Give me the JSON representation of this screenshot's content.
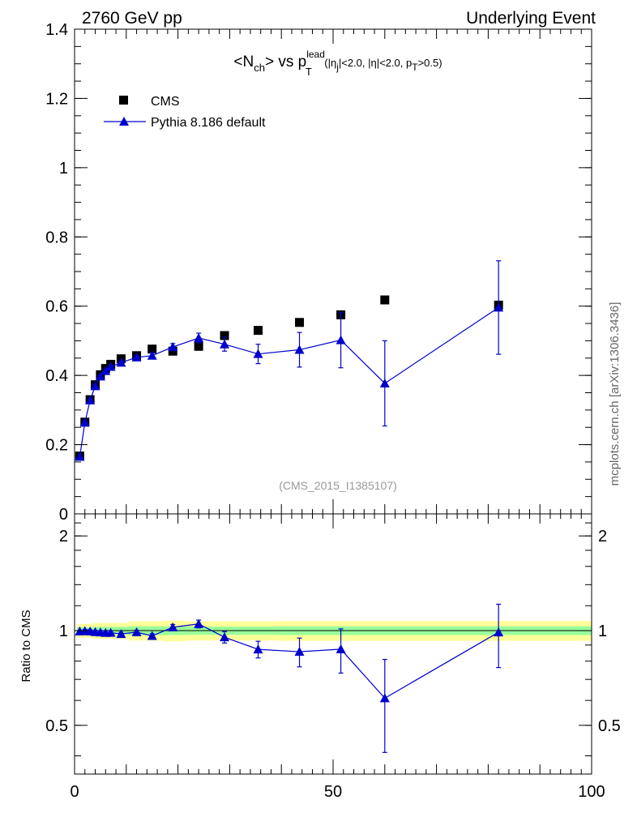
{
  "header": {
    "left": "2760 GeV pp",
    "right": "Underlying Event"
  },
  "side_label": "mcplots.cern.ch [arXiv:1306.3436]",
  "chart_data": {
    "type": "scatter",
    "title": {
      "n_open": "<N",
      "n_sub": "ch",
      "n_close": "> vs p",
      "p_sup": "lead",
      "p_sub": "T",
      "cut_open": " (|η",
      "cut_eta_sub": "j",
      "cut_mid": "|<2.0, |η|<2.0, p",
      "cut_pt_sub": "T",
      "cut_close": ">0.5)"
    },
    "watermark": "(CMS_2015_I1385107)",
    "xlim": [
      0,
      100
    ],
    "main": {
      "ylim": [
        0,
        1.4
      ],
      "yticks": [
        {
          "value": 0,
          "label": "0"
        },
        {
          "value": 0.2,
          "label": "0.2"
        },
        {
          "value": 0.4,
          "label": "0.4"
        },
        {
          "value": 0.6,
          "label": "0.6"
        },
        {
          "value": 0.8,
          "label": "0.8"
        },
        {
          "value": 1.0,
          "label": "1"
        },
        {
          "value": 1.2,
          "label": "1.2"
        },
        {
          "value": 1.4,
          "label": "1.4"
        }
      ]
    },
    "ratio": {
      "ylabel": "Ratio to CMS",
      "ylim": [
        0.35,
        2.35
      ],
      "log": true,
      "yticks": [
        {
          "value": 0.5,
          "label": "0.5"
        },
        {
          "value": 1,
          "label": "1"
        },
        {
          "value": 2,
          "label": "2"
        }
      ]
    },
    "xticks": [
      {
        "value": 0,
        "label": "0"
      },
      {
        "value": 50,
        "label": "50"
      },
      {
        "value": 100,
        "label": "100"
      }
    ],
    "legend": {
      "placement": "top-left",
      "entries": [
        "CMS",
        "Pythia 8.186 default"
      ]
    },
    "colors": {
      "data": "#000000",
      "mc": "#0000cc",
      "band_inner": "#99ff99",
      "band_outer": "#ffff99"
    },
    "series": [
      {
        "name": "CMS",
        "marker": "square",
        "points": [
          {
            "x": 1.0,
            "y": 0.167,
            "xlo": 0.5,
            "xhi": 1.5
          },
          {
            "x": 2.0,
            "y": 0.265,
            "xlo": 1.5,
            "xhi": 2.5
          },
          {
            "x": 3.0,
            "y": 0.33,
            "xlo": 2.5,
            "xhi": 3.5
          },
          {
            "x": 4.0,
            "y": 0.373,
            "xlo": 3.5,
            "xhi": 4.5
          },
          {
            "x": 5.0,
            "y": 0.402,
            "xlo": 4.5,
            "xhi": 5.5
          },
          {
            "x": 6.0,
            "y": 0.42,
            "xlo": 5.5,
            "xhi": 6.5
          },
          {
            "x": 7.0,
            "y": 0.432,
            "xlo": 6.5,
            "xhi": 8.0
          },
          {
            "x": 9.0,
            "y": 0.448,
            "xlo": 8.0,
            "xhi": 10.5
          },
          {
            "x": 12.0,
            "y": 0.457,
            "xlo": 10.5,
            "xhi": 13.5
          },
          {
            "x": 15.0,
            "y": 0.476,
            "xlo": 13.5,
            "xhi": 17.0
          },
          {
            "x": 19.0,
            "y": 0.47,
            "xlo": 17.0,
            "xhi": 21.5
          },
          {
            "x": 24.0,
            "y": 0.484,
            "xlo": 21.5,
            "xhi": 26.5
          },
          {
            "x": 29.0,
            "y": 0.515,
            "xlo": 26.5,
            "xhi": 32.0
          },
          {
            "x": 35.5,
            "y": 0.53,
            "xlo": 32.0,
            "xhi": 39.5
          },
          {
            "x": 43.5,
            "y": 0.553,
            "xlo": 39.5,
            "xhi": 47.5
          },
          {
            "x": 51.5,
            "y": 0.575,
            "xlo": 47.5,
            "xhi": 56.0
          },
          {
            "x": 60.0,
            "y": 0.618,
            "xlo": 56.0,
            "xhi": 64.0
          },
          {
            "x": 82.0,
            "y": 0.603,
            "xlo": 64.0,
            "xhi": 100.0
          }
        ]
      },
      {
        "name": "Pythia 8.186 default",
        "marker": "triangle",
        "points": [
          {
            "x": 1.0,
            "y": 0.165
          },
          {
            "x": 2.0,
            "y": 0.264,
            "err": 0.004
          },
          {
            "x": 3.0,
            "y": 0.328,
            "err": 0.004
          },
          {
            "x": 4.0,
            "y": 0.369,
            "err": 0.004
          },
          {
            "x": 5.0,
            "y": 0.397,
            "err": 0.005
          },
          {
            "x": 6.0,
            "y": 0.413,
            "err": 0.005
          },
          {
            "x": 7.0,
            "y": 0.425,
            "err": 0.005
          },
          {
            "x": 9.0,
            "y": 0.437,
            "err": 0.005
          },
          {
            "x": 12.0,
            "y": 0.452,
            "err": 0.006
          },
          {
            "x": 15.0,
            "y": 0.457,
            "err": 0.008
          },
          {
            "x": 19.0,
            "y": 0.482,
            "err": 0.01
          },
          {
            "x": 24.0,
            "y": 0.508,
            "err": 0.014
          },
          {
            "x": 29.0,
            "y": 0.49,
            "err": 0.02
          },
          {
            "x": 35.5,
            "y": 0.462,
            "err": 0.028
          },
          {
            "x": 43.5,
            "y": 0.474,
            "err": 0.05
          },
          {
            "x": 51.5,
            "y": 0.502,
            "err": 0.08
          },
          {
            "x": 60.0,
            "y": 0.377,
            "err": 0.123
          },
          {
            "x": 82.0,
            "y": 0.596,
            "err": 0.135
          }
        ]
      }
    ],
    "ratio_band": [
      {
        "xlo": 0.5,
        "xhi": 3.5,
        "inner": 0.025,
        "outer": 0.05
      },
      {
        "xlo": 3.5,
        "xhi": 10.5,
        "inner": 0.028,
        "outer": 0.058
      },
      {
        "xlo": 10.5,
        "xhi": 17.0,
        "inner": 0.032,
        "outer": 0.07
      },
      {
        "xlo": 17.0,
        "xhi": 21.5,
        "inner": 0.032,
        "outer": 0.075
      },
      {
        "xlo": 21.5,
        "xhi": 39.5,
        "inner": 0.03,
        "outer": 0.07
      },
      {
        "xlo": 39.5,
        "xhi": 100.0,
        "inner": 0.032,
        "outer": 0.072
      }
    ],
    "ratio_points": [
      {
        "x": 1.0,
        "y": 0.995
      },
      {
        "x": 2.0,
        "y": 0.997,
        "err": 0.012
      },
      {
        "x": 3.0,
        "y": 0.995,
        "err": 0.012
      },
      {
        "x": 4.0,
        "y": 0.99,
        "err": 0.012
      },
      {
        "x": 5.0,
        "y": 0.988,
        "err": 0.012
      },
      {
        "x": 6.0,
        "y": 0.984,
        "err": 0.012
      },
      {
        "x": 7.0,
        "y": 0.985,
        "err": 0.012
      },
      {
        "x": 9.0,
        "y": 0.976,
        "err": 0.012
      },
      {
        "x": 12.0,
        "y": 0.989,
        "err": 0.014
      },
      {
        "x": 15.0,
        "y": 0.962,
        "err": 0.016
      },
      {
        "x": 19.0,
        "y": 1.025,
        "err": 0.021
      },
      {
        "x": 24.0,
        "y": 1.05,
        "err": 0.03
      },
      {
        "x": 29.0,
        "y": 0.953,
        "err": 0.04
      },
      {
        "x": 35.5,
        "y": 0.872,
        "err": 0.053
      },
      {
        "x": 43.5,
        "y": 0.857,
        "err": 0.09
      },
      {
        "x": 51.5,
        "y": 0.873,
        "err": 0.14
      },
      {
        "x": 60.0,
        "y": 0.61,
        "err": 0.2
      },
      {
        "x": 82.0,
        "y": 0.988,
        "err": 0.225
      }
    ]
  }
}
